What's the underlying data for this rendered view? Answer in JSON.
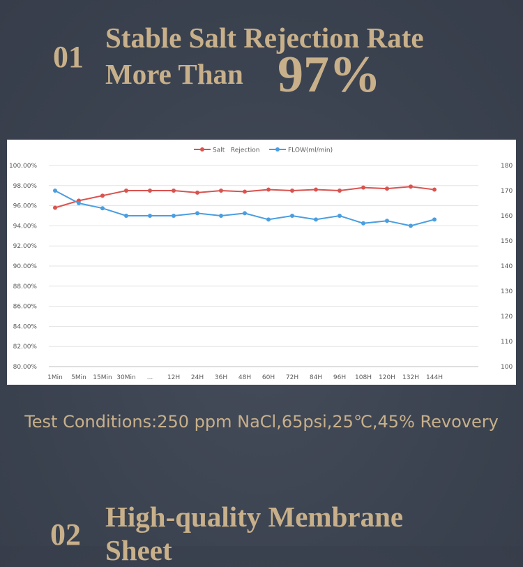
{
  "section1": {
    "number": "01",
    "heading_line1": "Stable Salt Rejection Rate",
    "heading_line2": "More Than",
    "highlight": "97%"
  },
  "test_conditions": "Test Conditions:250 ppm NaCl,65psi,25℃,45% Revovery",
  "section2": {
    "number": "02",
    "heading_line1": "High-quality Membrane",
    "heading_line2": "Sheet"
  },
  "colors": {
    "accent": "#c8b08a",
    "salt_series": "#d9534f",
    "flow_series": "#4a9ee0"
  },
  "chart_data": {
    "type": "line",
    "categories": [
      "1Min",
      "5Min",
      "15Min",
      "30Min",
      "...",
      "12H",
      "24H",
      "36H",
      "48H",
      "60H",
      "72H",
      "84H",
      "96H",
      "108H",
      "120H",
      "132H",
      "144H"
    ],
    "series": [
      {
        "name": "Salt   Rejection",
        "axis": "left",
        "values": [
          95.8,
          96.5,
          97.0,
          97.5,
          97.5,
          97.5,
          97.3,
          97.5,
          97.4,
          97.6,
          97.5,
          97.6,
          97.5,
          97.8,
          97.7,
          97.9,
          97.6
        ]
      },
      {
        "name": "FLOW(ml/min)",
        "axis": "right",
        "values": [
          170,
          165,
          163,
          160,
          160,
          160,
          161,
          160,
          161,
          158.5,
          160,
          158.5,
          160,
          157,
          158,
          156,
          158.5
        ]
      }
    ],
    "left_axis": {
      "min": 80,
      "max": 100,
      "step": 2,
      "tick_labels": [
        "80.00%",
        "82.00%",
        "84.00%",
        "86.00%",
        "88.00%",
        "90.00%",
        "92.00%",
        "94.00%",
        "96.00%",
        "98.00%",
        "100.00%"
      ]
    },
    "right_axis": {
      "min": 100,
      "max": 180,
      "step": 10,
      "tick_labels": [
        "100",
        "110",
        "120",
        "130",
        "140",
        "150",
        "160",
        "170",
        "180"
      ]
    },
    "grid": "horizontal",
    "legend_position": "top"
  }
}
